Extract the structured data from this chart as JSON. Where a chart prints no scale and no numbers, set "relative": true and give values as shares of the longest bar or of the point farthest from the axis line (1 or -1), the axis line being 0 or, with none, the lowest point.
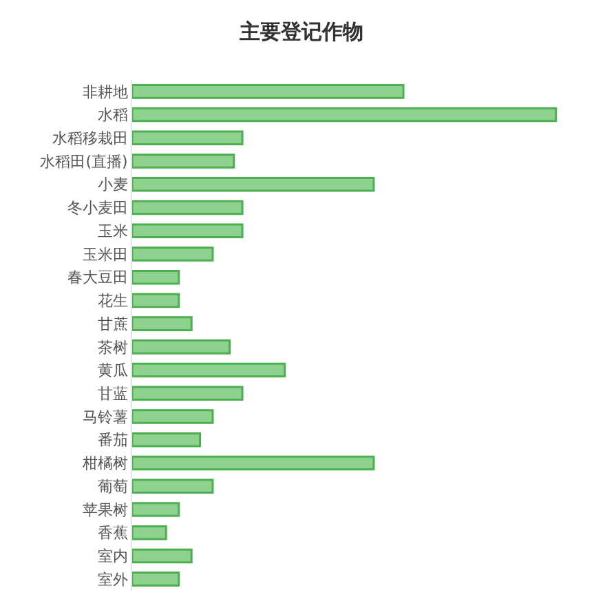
{
  "chart_data": {
    "type": "bar",
    "title": "主要登记作物",
    "orientation": "horizontal",
    "relative": true,
    "categories": [
      "非耕地",
      "水稻",
      "水稻移栽田",
      "水稻田(直播)",
      "小麦",
      "冬小麦田",
      "玉米",
      "玉米田",
      "春大豆田",
      "花生",
      "甘蔗",
      "茶树",
      "黄瓜",
      "甘蓝",
      "马铃薯",
      "番茄",
      "柑橘树",
      "葡萄",
      "苹果树",
      "香蕉",
      "室内",
      "室外"
    ],
    "values": [
      0.64,
      1,
      0.26,
      0.24,
      0.57,
      0.26,
      0.26,
      0.19,
      0.11,
      0.11,
      0.14,
      0.23,
      0.36,
      0.26,
      0.19,
      0.16,
      0.57,
      0.19,
      0.11,
      0.08,
      0.14,
      0.11
    ],
    "color": "#8fd18f",
    "legend": false
  }
}
